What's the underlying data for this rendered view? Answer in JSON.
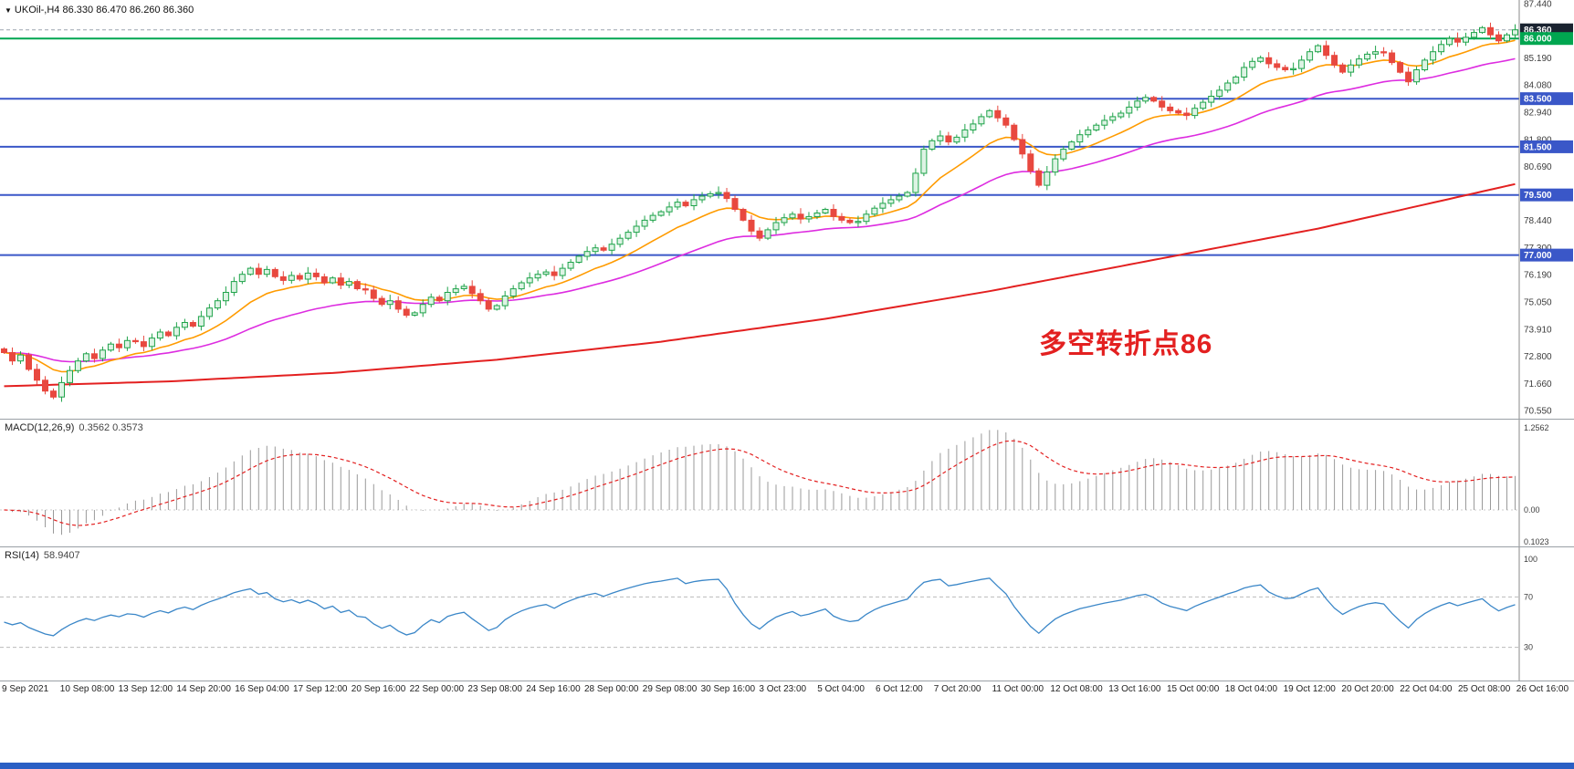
{
  "meta": {
    "bottom_bar_color": "#2a5fc4"
  },
  "chart": {
    "symbol_timeframe": "UKOil-,H4",
    "ohlc_text": "86.330 86.470 86.260 86.360",
    "annotation": "多空转折点86",
    "annotation_color": "#e32020"
  },
  "price_axis": [
    {
      "value": 87.44,
      "label": "87.440"
    },
    {
      "value": 85.19,
      "label": "85.190"
    },
    {
      "value": 84.08,
      "label": "84.080"
    },
    {
      "value": 82.94,
      "label": "82.940"
    },
    {
      "value": 81.8,
      "label": "81.800"
    },
    {
      "value": 80.69,
      "label": "80.690"
    },
    {
      "value": 78.44,
      "label": "78.440"
    },
    {
      "value": 77.3,
      "label": "77.300"
    },
    {
      "value": 76.19,
      "label": "76.190"
    },
    {
      "value": 75.05,
      "label": "75.050"
    },
    {
      "value": 73.91,
      "label": "73.910"
    },
    {
      "value": 72.8,
      "label": "72.800"
    },
    {
      "value": 71.66,
      "label": "71.660"
    },
    {
      "value": 70.55,
      "label": "70.550"
    }
  ],
  "levels": [
    {
      "value": 86.36,
      "label": "86.360",
      "type": "current",
      "line_color": "#9aa4ae",
      "tag_bg": "#1a2330"
    },
    {
      "value": 86.0,
      "label": "86.000",
      "type": "support",
      "line_color": "#00a650",
      "tag_bg": "#00a650"
    },
    {
      "value": 83.5,
      "label": "83.500",
      "type": "support",
      "line_color": "#3a57c8",
      "tag_bg": "#3a57c8"
    },
    {
      "value": 81.5,
      "label": "81.500",
      "type": "support",
      "line_color": "#3a57c8",
      "tag_bg": "#3a57c8"
    },
    {
      "value": 79.5,
      "label": "79.500",
      "type": "support",
      "line_color": "#3a57c8",
      "tag_bg": "#3a57c8"
    },
    {
      "value": 77.0,
      "label": "77.000",
      "type": "support",
      "line_color": "#3a57c8",
      "tag_bg": "#3a57c8"
    }
  ],
  "chart_data": {
    "type": "candlestick",
    "title": "UKOil-,H4",
    "y_range": [
      70.2,
      87.6
    ],
    "last_candle": {
      "open": 86.33,
      "high": 86.47,
      "low": 86.26,
      "close": 86.36
    },
    "candle_colors": {
      "up": "#1fa34a",
      "up_fill": "#ddf3e4",
      "down": "#e8483f"
    },
    "closes": [
      72.95,
      72.6,
      72.85,
      72.25,
      71.8,
      71.35,
      71.1,
      71.7,
      72.2,
      72.6,
      72.9,
      72.7,
      73.05,
      73.3,
      73.15,
      73.45,
      73.4,
      73.2,
      73.55,
      73.8,
      73.65,
      74.0,
      74.2,
      74.05,
      74.45,
      74.8,
      75.1,
      75.45,
      75.9,
      76.2,
      76.45,
      76.2,
      76.4,
      76.1,
      75.95,
      76.15,
      76.0,
      76.25,
      76.1,
      75.85,
      76.05,
      75.75,
      75.9,
      75.6,
      75.55,
      75.2,
      74.95,
      75.1,
      74.75,
      74.5,
      74.6,
      74.95,
      75.25,
      75.1,
      75.45,
      75.6,
      75.7,
      75.4,
      75.1,
      74.75,
      74.9,
      75.3,
      75.6,
      75.85,
      76.05,
      76.2,
      76.3,
      76.15,
      76.45,
      76.7,
      76.95,
      77.15,
      77.3,
      77.2,
      77.45,
      77.7,
      77.95,
      78.2,
      78.45,
      78.65,
      78.8,
      79.0,
      79.2,
      79.05,
      79.3,
      79.45,
      79.55,
      79.6,
      79.35,
      78.9,
      78.45,
      78.0,
      77.7,
      78.05,
      78.35,
      78.55,
      78.7,
      78.5,
      78.6,
      78.75,
      78.9,
      78.6,
      78.45,
      78.35,
      78.4,
      78.7,
      78.95,
      79.15,
      79.3,
      79.45,
      79.6,
      80.4,
      81.4,
      81.75,
      81.95,
      81.7,
      81.9,
      82.2,
      82.45,
      82.75,
      83.0,
      82.7,
      82.4,
      81.8,
      81.2,
      80.5,
      79.9,
      80.45,
      81.0,
      81.4,
      81.7,
      82.0,
      82.2,
      82.4,
      82.6,
      82.75,
      82.9,
      83.15,
      83.4,
      83.55,
      83.4,
      83.15,
      83.0,
      82.9,
      82.8,
      83.1,
      83.35,
      83.6,
      83.85,
      84.15,
      84.4,
      84.8,
      85.05,
      85.2,
      84.95,
      84.8,
      84.7,
      84.75,
      85.1,
      85.45,
      85.7,
      85.3,
      84.9,
      84.6,
      84.9,
      85.15,
      85.35,
      85.45,
      85.4,
      85.0,
      84.6,
      84.2,
      84.7,
      85.1,
      85.45,
      85.75,
      86.0,
      85.85,
      86.05,
      86.25,
      86.45,
      86.15,
      85.9,
      86.15,
      86.36
    ],
    "moving_averages": {
      "fast_period": 12,
      "fast_color": "#ff9b00",
      "mid_period": 34,
      "mid_color": "#dd2ce0",
      "long_color": "#e32020",
      "long_anchors": [
        [
          0,
          71.55
        ],
        [
          20,
          71.75
        ],
        [
          40,
          72.1
        ],
        [
          60,
          72.65
        ],
        [
          80,
          73.4
        ],
        [
          100,
          74.35
        ],
        [
          120,
          75.5
        ],
        [
          140,
          76.8
        ],
        [
          160,
          78.1
        ],
        [
          184,
          79.95
        ]
      ]
    },
    "macd": {
      "label": "MACD(12,26,9)",
      "values_text": "0.3562 0.3573",
      "fast": 12,
      "slow": 26,
      "signal": 9,
      "axis_labels": [
        "1.2562",
        "0.00",
        "0.1023"
      ],
      "histogram_color": "#9a9a9a",
      "signal_color": "#e32020"
    },
    "rsi": {
      "label": "RSI(14)",
      "value_text": "58.9407",
      "period": 14,
      "levels": [
        70,
        30
      ],
      "axis_labels": [
        "100",
        "70",
        "30"
      ],
      "line_color": "#3b87c8"
    },
    "time_labels": [
      "9 Sep 2021",
      "10 Sep 08:00",
      "13 Sep 12:00",
      "14 Sep 20:00",
      "16 Sep 04:00",
      "17 Sep 12:00",
      "20 Sep 16:00",
      "22 Sep 00:00",
      "23 Sep 08:00",
      "24 Sep 16:00",
      "28 Sep 00:00",
      "29 Sep 08:00",
      "30 Sep 16:00",
      "3 Oct 23:00",
      "5 Oct 04:00",
      "6 Oct 12:00",
      "7 Oct 20:00",
      "11 Oct 00:00",
      "12 Oct 08:00",
      "13 Oct 16:00",
      "15 Oct 00:00",
      "18 Oct 04:00",
      "19 Oct 12:00",
      "20 Oct 20:00",
      "22 Oct 04:00",
      "25 Oct 08:00",
      "26 Oct 16:00"
    ]
  }
}
